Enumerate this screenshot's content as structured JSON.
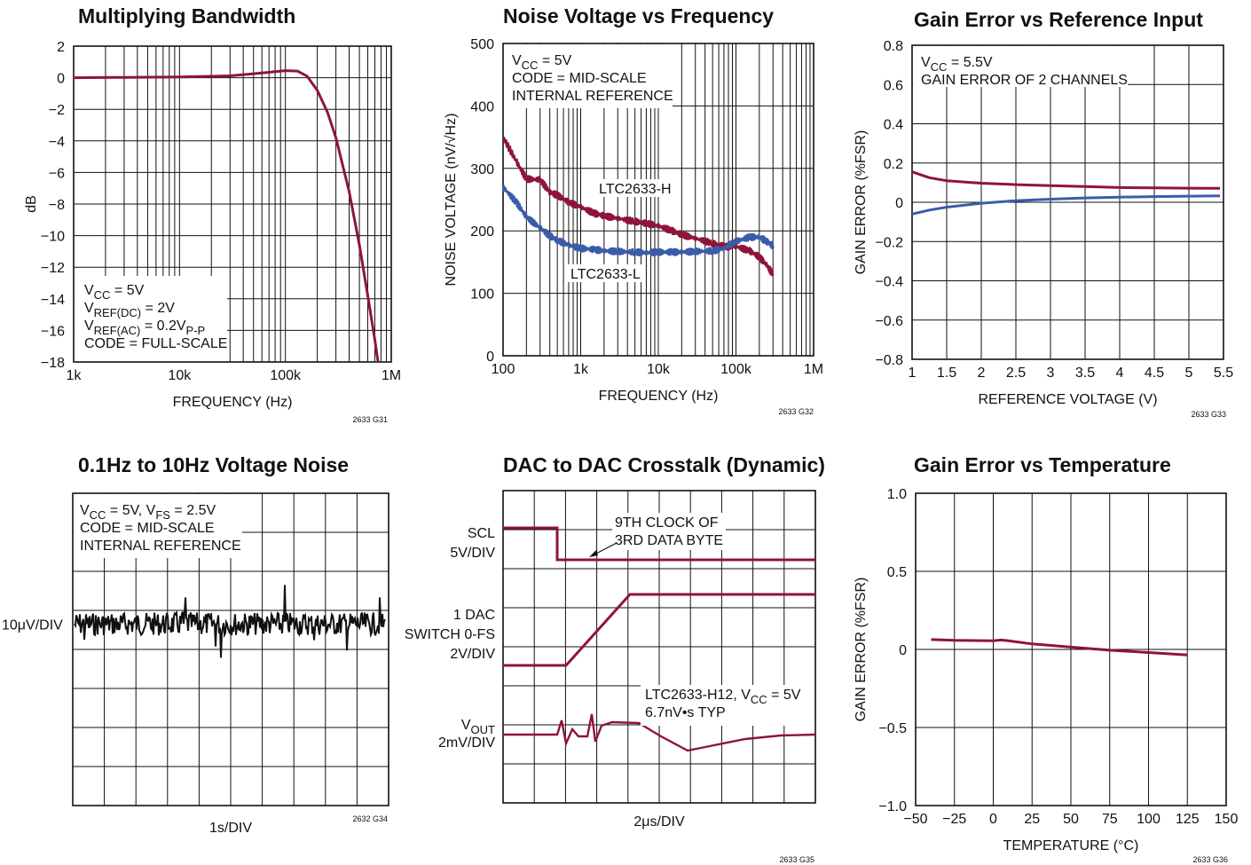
{
  "colors": {
    "red": "#8e1538",
    "blue": "#3b5ca8",
    "black": "#111111"
  },
  "charts": [
    {
      "id": "g31",
      "type": "line",
      "title": "Multiplying Bandwidth",
      "xlabel": "FREQUENCY (Hz)",
      "ylabel": "dB",
      "xscale": "log",
      "xlim": [
        1000,
        1000000
      ],
      "ylim": [
        -18,
        2
      ],
      "xticks": [
        1000,
        10000,
        100000,
        1000000
      ],
      "xticklabels": [
        "1k",
        "10k",
        "100k",
        "1M"
      ],
      "yticks": [
        2,
        0,
        -2,
        -4,
        -6,
        -8,
        -10,
        -12,
        -14,
        -16,
        -18
      ],
      "yticklabels": [
        "2",
        "0",
        "−2",
        "−4",
        "−6",
        "−8",
        "−10",
        "−12",
        "−14",
        "−16",
        "−18"
      ],
      "code": "2633 G31",
      "notes": [
        "V_CC = 5V",
        "V_REF(DC) = 2V",
        "V_REF(AC) = 0.2V_P-P",
        "CODE = FULL-SCALE"
      ],
      "series": [
        {
          "color": "red",
          "x": [
            1000,
            3000,
            10000,
            30000,
            60000,
            100000,
            130000,
            160000,
            200000,
            250000,
            300000,
            400000,
            500000,
            600000,
            700000,
            750000
          ],
          "y": [
            0.0,
            0.02,
            0.05,
            0.12,
            0.3,
            0.45,
            0.42,
            0.1,
            -0.8,
            -2.2,
            -3.8,
            -7.2,
            -10.6,
            -13.8,
            -16.6,
            -18
          ]
        }
      ]
    },
    {
      "id": "g32",
      "type": "line",
      "title": "Noise Voltage vs Frequency",
      "xlabel": "FREQUENCY (Hz)",
      "ylabel": "NOISE VOLTAGE (nV/√Hz)",
      "xscale": "log",
      "xlim": [
        100,
        1000000
      ],
      "ylim": [
        0,
        500
      ],
      "xticks": [
        100,
        1000,
        10000,
        100000,
        1000000
      ],
      "xticklabels": [
        "100",
        "1k",
        "10k",
        "100k",
        "1M"
      ],
      "yticks": [
        0,
        100,
        200,
        300,
        400,
        500
      ],
      "yticklabels": [
        "0",
        "100",
        "200",
        "300",
        "400",
        "500"
      ],
      "code": "2633 G32",
      "notes": [
        "V_CC = 5V",
        "CODE = MID-SCALE",
        "INTERNAL REFERENCE"
      ],
      "series": [
        {
          "name": "LTC2633-H",
          "color": "red",
          "x": [
            100,
            150,
            200,
            300,
            400,
            500,
            700,
            1000,
            1500,
            2000,
            3000,
            5000,
            7000,
            10000,
            15000,
            20000,
            30000,
            50000,
            70000,
            100000,
            150000,
            200000,
            250000,
            300000
          ],
          "y": [
            350,
            310,
            283,
            282,
            262,
            257,
            246,
            238,
            228,
            224,
            220,
            215,
            212,
            208,
            200,
            194,
            188,
            180,
            175,
            175,
            168,
            158,
            145,
            130
          ]
        },
        {
          "name": "LTC2633-L",
          "color": "blue",
          "x": [
            100,
            150,
            200,
            300,
            400,
            500,
            700,
            1000,
            1500,
            2000,
            3000,
            5000,
            7000,
            10000,
            15000,
            20000,
            30000,
            50000,
            70000,
            100000,
            150000,
            200000,
            250000,
            300000
          ],
          "y": [
            270,
            245,
            222,
            205,
            192,
            185,
            177,
            172,
            170,
            168,
            167,
            166,
            165,
            166,
            166,
            166,
            167,
            168,
            172,
            183,
            190,
            190,
            183,
            176
          ]
        }
      ],
      "series_labels": [
        "LTC2633-H",
        "LTC2633-L"
      ]
    },
    {
      "id": "g33",
      "type": "line",
      "title": "Gain Error vs Reference Input",
      "xlabel": "REFERENCE VOLTAGE (V)",
      "ylabel": "GAIN ERROR (%FSR)",
      "xscale": "linear",
      "xlim": [
        1,
        5.5
      ],
      "ylim": [
        -0.8,
        0.8
      ],
      "xticks": [
        1,
        1.5,
        2,
        2.5,
        3,
        3.5,
        4,
        4.5,
        5,
        5.5
      ],
      "xticklabels": [
        "1",
        "1.5",
        "2",
        "2.5",
        "3",
        "3.5",
        "4",
        "4.5",
        "5",
        "5.5"
      ],
      "yticks": [
        0.8,
        0.6,
        0.4,
        0.2,
        0,
        -0.2,
        -0.4,
        -0.6,
        -0.8
      ],
      "yticklabels": [
        "0.8",
        "0.6",
        "0.4",
        "0.2",
        "0",
        "−0.2",
        "−0.4",
        "−0.6",
        "−0.8"
      ],
      "code": "2633 G33",
      "notes": [
        "V_CC = 5.5V",
        "GAIN ERROR OF 2 CHANNELS"
      ],
      "series": [
        {
          "color": "red",
          "x": [
            1,
            1.25,
            1.5,
            2,
            2.5,
            3,
            3.5,
            4,
            4.5,
            5,
            5.45
          ],
          "y": [
            0.155,
            0.125,
            0.11,
            0.097,
            0.09,
            0.085,
            0.08,
            0.075,
            0.073,
            0.072,
            0.071
          ]
        },
        {
          "color": "blue",
          "x": [
            1,
            1.25,
            1.5,
            2,
            2.5,
            3,
            3.5,
            4,
            4.5,
            5,
            5.45
          ],
          "y": [
            -0.06,
            -0.04,
            -0.025,
            -0.005,
            0.008,
            0.016,
            0.022,
            0.026,
            0.029,
            0.031,
            0.033
          ]
        }
      ]
    },
    {
      "id": "g34",
      "type": "line",
      "title": "0.1Hz to 10Hz Voltage Noise",
      "xlabel": "1s/DIV",
      "ylabel": "10μV/DIV",
      "code": "2632 G34",
      "notes": [
        "V_CC = 5V, V_FS = 2.5V",
        "CODE = MID-SCALE",
        "INTERNAL REFERENCE"
      ],
      "divisions": {
        "x": 10,
        "y": 8
      },
      "noise": {
        "color": "black",
        "baseline_div": 3.35
      }
    },
    {
      "id": "g35",
      "type": "line",
      "title": "DAC to DAC Crosstalk (Dynamic)",
      "xlabel": "2μs/DIV",
      "code": "2633 G35",
      "channel_labels": [
        {
          "lines": [
            "SCL",
            "5V/DIV"
          ]
        },
        {
          "lines": [
            "1 DAC",
            "SWITCH 0-FS",
            "2V/DIV"
          ]
        },
        {
          "lines": [
            "V_OUT",
            "2mV/DIV"
          ]
        }
      ],
      "annotations": [
        "9TH CLOCK OF",
        "3RD DATA BYTE"
      ],
      "notes": [
        "LTC2633-H12, V_CC = 5V",
        "6.7nV•s TYP"
      ],
      "divisions": {
        "x": 10,
        "y": 8
      }
    },
    {
      "id": "g36",
      "type": "line",
      "title": "Gain Error vs Temperature",
      "xlabel": "TEMPERATURE (°C)",
      "ylabel": "GAIN ERROR (%FSR)",
      "xscale": "linear",
      "xlim": [
        -50,
        150
      ],
      "ylim": [
        -1.0,
        1.0
      ],
      "xticks": [
        -50,
        -25,
        0,
        25,
        50,
        75,
        100,
        125,
        150
      ],
      "xticklabels": [
        "−50",
        "−25",
        "0",
        "25",
        "50",
        "75",
        "100",
        "125",
        "150"
      ],
      "yticks": [
        1.0,
        0.5,
        0,
        -0.5,
        -1.0
      ],
      "yticklabels": [
        "1.0",
        "0.5",
        "0",
        "−0.5",
        "−1.0"
      ],
      "code": "2633 G36",
      "series": [
        {
          "color": "red",
          "x": [
            -40,
            -25,
            0,
            5,
            10,
            25,
            50,
            75,
            100,
            125
          ],
          "y": [
            0.063,
            0.058,
            0.055,
            0.06,
            0.055,
            0.035,
            0.015,
            -0.005,
            -0.02,
            -0.035
          ]
        }
      ]
    }
  ]
}
